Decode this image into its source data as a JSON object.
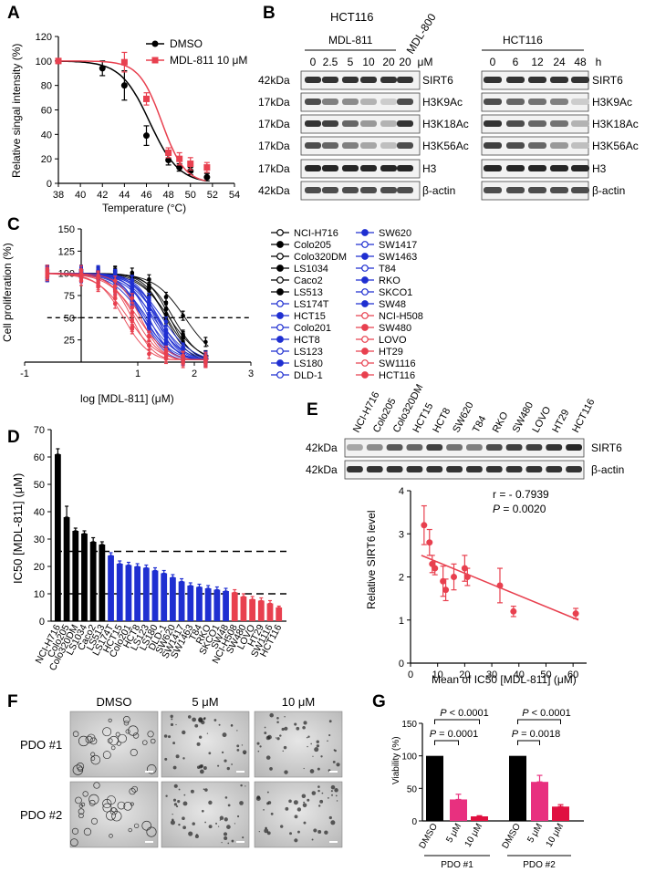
{
  "panels": {
    "A": "A",
    "B": "B",
    "C": "C",
    "D": "D",
    "E": "E",
    "F": "F",
    "G": "G"
  },
  "chart_data": [
    {
      "panel": "A",
      "type": "line",
      "xlabel": "Temperature (°C)",
      "ylabel": "Relative singal intensity (%)",
      "xlim": [
        38,
        54
      ],
      "ylim": [
        0,
        120
      ],
      "xticks": [
        "38",
        "40",
        "42",
        "44",
        "46",
        "48",
        "50",
        "52",
        "54"
      ],
      "yticks": [
        "0",
        "20",
        "40",
        "60",
        "80",
        "100",
        "120"
      ],
      "legend": [
        "DMSO",
        "MDL-811 10 μM"
      ],
      "colors": {
        "DMSO": "#000000",
        "MDL-811 10 μM": "#e8404f"
      },
      "series": [
        {
          "name": "DMSO",
          "x": [
            38,
            42,
            44,
            46,
            48,
            49,
            50,
            51.5
          ],
          "y": [
            100,
            94,
            80,
            39,
            19,
            13,
            10,
            5
          ],
          "err": [
            2,
            6,
            12,
            8,
            4,
            3,
            3,
            3
          ]
        },
        {
          "name": "MDL-811 10 μM",
          "x": [
            38,
            44,
            46,
            48,
            49,
            50,
            51.5
          ],
          "y": [
            100,
            99,
            69,
            25,
            20,
            16,
            13
          ],
          "err": [
            2,
            8,
            5,
            4,
            5,
            5,
            4
          ]
        }
      ]
    },
    {
      "panel": "C",
      "type": "line",
      "xlabel": "log [MDL-811] (μM)",
      "ylabel": "Cell proliferation (%)",
      "xlim": [
        -1,
        3
      ],
      "ylim": [
        0,
        150
      ],
      "xticks": [
        "-1",
        "1",
        "2",
        "3"
      ],
      "yticks": [
        "25",
        "50",
        "75",
        "100",
        "125",
        "150"
      ],
      "reference_line": 50,
      "legend_col1": [
        "NCI-H716",
        "Colo205",
        "Colo320DM",
        "LS1034",
        "Caco2",
        "LS513",
        "LS174T",
        "HCT15",
        "Colo201",
        "HCT8",
        "LS123",
        "LS180",
        "DLD-1"
      ],
      "legend_col2": [
        "SW620",
        "SW1417",
        "SW1463",
        "T84",
        "RKO",
        "SKCO1",
        "SW48",
        "NCI-H508",
        "SW480",
        "LOVO",
        "HT29",
        "SW1116",
        "HCT116"
      ],
      "series_ic50": [
        61,
        38,
        33,
        32,
        29,
        28,
        24,
        21,
        20,
        20,
        19,
        18,
        17,
        16,
        14,
        13,
        12,
        11,
        11,
        11,
        10,
        9,
        8,
        7,
        6,
        5
      ],
      "x_conc": [
        -0.6,
        0,
        0.3,
        0.6,
        0.9,
        1.2,
        1.5,
        1.8,
        2.2
      ]
    },
    {
      "panel": "D",
      "type": "bar",
      "ylabel": "IC50 [MDL-811] (μM)",
      "ylim": [
        0,
        70
      ],
      "yticks": [
        "0",
        "10",
        "20",
        "30",
        "40",
        "50",
        "60",
        "70"
      ],
      "reference_lines": [
        10,
        25.5
      ],
      "categories": [
        "NCI-H716",
        "Colo205",
        "Colo320DM",
        "LS1034",
        "Caco2",
        "LS513",
        "LS174T",
        "HCT15",
        "Colo201",
        "HCT8",
        "LS123",
        "LS180",
        "DLD-1",
        "SW620",
        "SW1417",
        "SW1463",
        "T84",
        "RKO",
        "SKCO1",
        "SW48",
        "NCI-H508",
        "SW480",
        "LOVO",
        "HT29",
        "SW1116",
        "HCT116"
      ],
      "values": [
        61,
        38,
        33,
        32,
        29,
        28,
        24,
        21,
        20.5,
        20,
        19.5,
        18.5,
        17.5,
        16,
        14.5,
        13,
        12.5,
        12,
        11.5,
        11,
        10.5,
        9,
        8,
        7.5,
        6.5,
        5
      ],
      "errors": [
        2,
        4,
        1,
        1,
        1.5,
        1,
        1,
        1,
        1,
        1,
        1,
        1,
        1,
        1,
        1,
        1,
        1,
        1,
        1,
        1,
        1,
        1,
        1,
        1,
        1,
        0.5
      ],
      "groups": [
        "black",
        "black",
        "black",
        "black",
        "black",
        "black",
        "blue",
        "blue",
        "blue",
        "blue",
        "blue",
        "blue",
        "blue",
        "blue",
        "blue",
        "blue",
        "blue",
        "blue",
        "blue",
        "blue",
        "red",
        "red",
        "red",
        "red",
        "red",
        "red"
      ]
    },
    {
      "panel": "E",
      "type": "scatter",
      "xlabel": "Mean of IC50 [MDL-811] (μM)",
      "ylabel": "Relative SIRT6 level",
      "xlim": [
        0,
        65
      ],
      "ylim": [
        0,
        4
      ],
      "xticks": [
        "0",
        "10",
        "20",
        "30",
        "40",
        "50",
        "60"
      ],
      "yticks": [
        "0",
        "1",
        "2",
        "3",
        "4"
      ],
      "annotation_r": "r = - 0.7939",
      "annotation_p_label": "P",
      "annotation_p_value": " = 0.0020",
      "x": [
        5,
        7,
        8,
        9,
        12,
        13,
        16,
        20,
        21,
        33,
        38,
        61
      ],
      "y": [
        3.2,
        2.8,
        2.3,
        2.2,
        1.9,
        1.7,
        2.0,
        2.2,
        2.0,
        1.8,
        1.2,
        1.15
      ],
      "err": [
        0.45,
        0.3,
        0.2,
        0.15,
        0.35,
        0.25,
        0.3,
        0.3,
        0.2,
        0.4,
        0.12,
        0.12
      ],
      "fit": [
        [
          4,
          2.5
        ],
        [
          62,
          1.0
        ]
      ]
    },
    {
      "panel": "G",
      "type": "bar",
      "ylabel": "Viability (%)",
      "ylim": [
        0,
        150
      ],
      "yticks": [
        "0",
        "50",
        "100",
        "150"
      ],
      "categories": [
        "DMSO",
        "5 μM",
        "10 μM",
        "DMSO",
        "5 μM",
        "10 μM"
      ],
      "values": [
        100,
        33,
        7,
        100,
        60,
        22
      ],
      "errors": [
        0,
        8,
        1,
        0,
        10,
        3
      ],
      "colors": [
        "#000000",
        "#e8307f",
        "#e01040",
        "#000000",
        "#e8307f",
        "#e01040"
      ],
      "group_labels": [
        "PDO #1",
        "PDO #2"
      ],
      "pvalues": [
        {
          "label": "P",
          "value": " < 0.0001"
        },
        {
          "label": "P",
          "value": " = 0.0001"
        },
        {
          "label": "P",
          "value": " < 0.0001"
        },
        {
          "label": "P",
          "value": " = 0.0018"
        }
      ]
    }
  ],
  "blotB": {
    "title": "HCT116",
    "left_group": "MDL-811",
    "left_extra": "MDL-800",
    "left_conc": [
      "0",
      "2.5",
      "5",
      "10",
      "20",
      "20"
    ],
    "left_unit": "μM",
    "right_title": "HCT116",
    "right_conc": [
      "0",
      "6",
      "12",
      "24",
      "48"
    ],
    "right_unit": "h",
    "kda": [
      "42kDa",
      "17kDa",
      "17kDa",
      "17kDa",
      "17kDa",
      "42kDa"
    ],
    "bands": [
      "SIRT6",
      "H3K9Ac",
      "H3K18Ac",
      "H3K56Ac",
      "H3",
      "β-actin"
    ]
  },
  "blotE": {
    "lanes": [
      "NCI-H716",
      "Colo205",
      "Colo320DM",
      "HCT15",
      "HCT8",
      "SW620",
      "T84",
      "RKO",
      "SW480",
      "LOVO",
      "HT29",
      "HCT116"
    ],
    "kda": [
      "42kDa",
      "42kDa"
    ],
    "bands": [
      "SIRT6",
      "β-actin"
    ]
  },
  "panelF": {
    "cols": [
      "DMSO",
      "5 μM",
      "10 μM"
    ],
    "rows": [
      "PDO #1",
      "PDO #2"
    ]
  }
}
